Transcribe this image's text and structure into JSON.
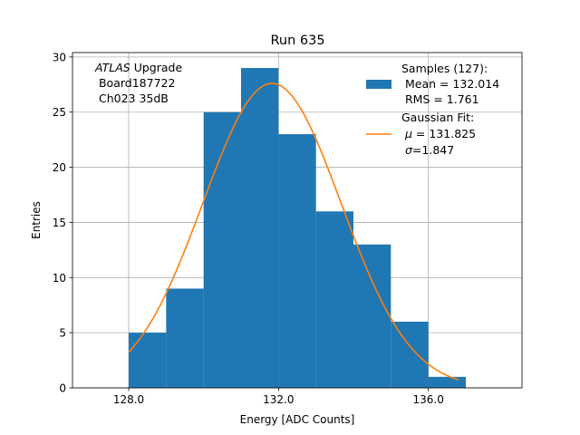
{
  "chart_data": {
    "type": "bar",
    "title": "Run 635",
    "xlabel": "Energy [ADC Counts]",
    "ylabel": "Entries",
    "xlim": [
      126.5,
      138.5
    ],
    "ylim": [
      0,
      30.4
    ],
    "xticks": [
      128.0,
      132.0,
      136.0
    ],
    "xtick_labels": [
      "128.0",
      "132.0",
      "136.0"
    ],
    "yticks": [
      0,
      5,
      10,
      15,
      20,
      25,
      30
    ],
    "ytick_labels": [
      "0",
      "5",
      "10",
      "15",
      "20",
      "25",
      "30"
    ],
    "grid": true,
    "bins": [
      {
        "x0": 128,
        "x1": 129,
        "count": 5
      },
      {
        "x0": 129,
        "x1": 130,
        "count": 9
      },
      {
        "x0": 130,
        "x1": 131,
        "count": 25
      },
      {
        "x0": 131,
        "x1": 132,
        "count": 29
      },
      {
        "x0": 132,
        "x1": 133,
        "count": 23
      },
      {
        "x0": 133,
        "x1": 134,
        "count": 16
      },
      {
        "x0": 134,
        "x1": 135,
        "count": 13
      },
      {
        "x0": 135,
        "x1": 136,
        "count": 6
      },
      {
        "x0": 136,
        "x1": 137,
        "count": 1
      }
    ],
    "fit": {
      "type": "gaussian",
      "mu": 131.825,
      "sigma": 1.847,
      "amplitude": 27.6,
      "x_range": [
        128.0,
        136.8
      ]
    },
    "colors": {
      "hist": "#1f77b4",
      "fit": "#ff7f0e",
      "grid": "#b0b0b0"
    },
    "annotation": {
      "italic": "ATLAS",
      "rest": " Upgrade",
      "line2": " Board187722",
      "line3": " Ch023 35dB"
    },
    "legend": {
      "placement": "top-right",
      "hist_title": "Samples (127):",
      "hist_mean": " Mean = 132.014",
      "hist_rms": " RMS = 1.761",
      "fit_title": "Gaussian Fit:",
      "fit_mu_sym": "μ",
      "fit_mu": " = 131.825",
      "fit_sigma_sym": "σ",
      "fit_sigma": "=1.847"
    }
  }
}
